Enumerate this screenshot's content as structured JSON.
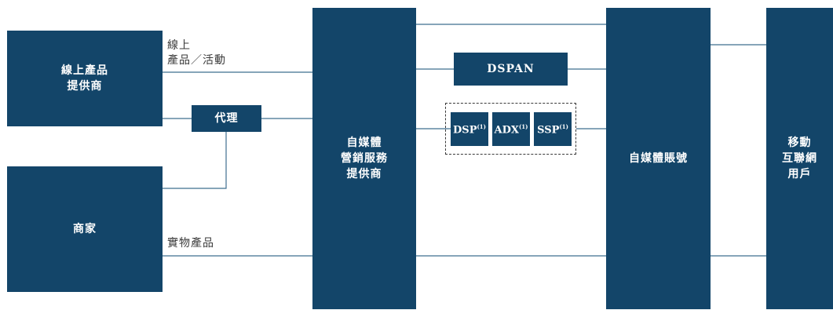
{
  "colors": {
    "box_fill": "#134569",
    "line": "#3f6f8f",
    "dashed_border": "#3a3a3a",
    "label_text": "#3a3a3a",
    "box_text": "#ffffff"
  },
  "nodes": {
    "online_provider": {
      "lines": [
        "線上產品",
        "提供商"
      ]
    },
    "merchant": {
      "label": "商家"
    },
    "agent": {
      "label": "代理"
    },
    "media_service_provider": {
      "lines": [
        "自媒體",
        "營銷服務",
        "提供商"
      ]
    },
    "dspan": {
      "label": "DSPAN"
    },
    "dsp": {
      "label": "DSP",
      "note": "(1)"
    },
    "adx": {
      "label": "ADX",
      "note": "(1)"
    },
    "ssp": {
      "label": "SSP",
      "note": "(1)"
    },
    "media_accounts": {
      "label": "自媒體賬號"
    },
    "mobile_users": {
      "lines": [
        "移動",
        "互聯網",
        "用戶"
      ]
    }
  },
  "edge_labels": {
    "online": {
      "lines": [
        "線上",
        "產品／活動"
      ]
    },
    "physical": {
      "text": "實物產品"
    }
  }
}
